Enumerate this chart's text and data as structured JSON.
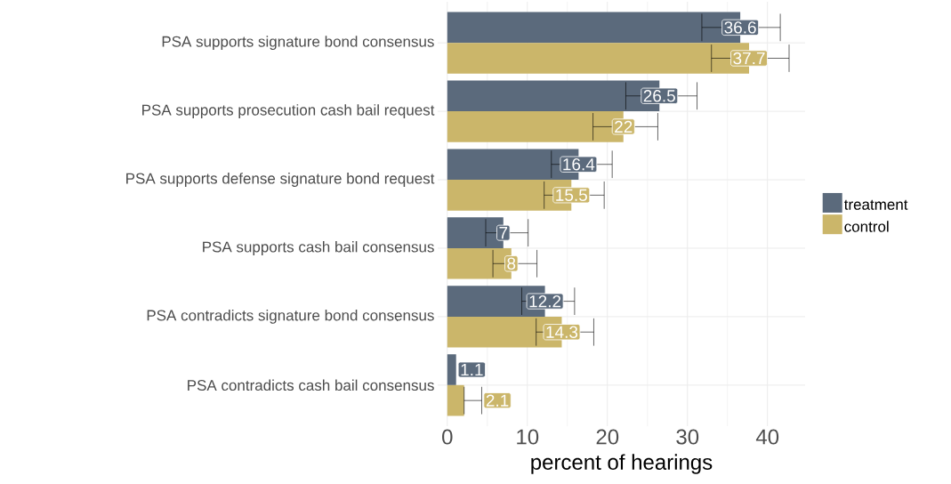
{
  "chart_data": {
    "type": "bar",
    "orientation": "horizontal",
    "xlabel": "percent of hearings",
    "categories": [
      "PSA supports signature bond consensus",
      "PSA supports prosecution cash bail request",
      "PSA supports defense signature bond request",
      "PSA supports cash bail consensus",
      "PSA contradicts signature bond consensus",
      "PSA contradicts cash bail consensus"
    ],
    "series": [
      {
        "name": "treatment",
        "color": "#5b6a7c",
        "values": [
          36.6,
          26.5,
          16.4,
          7,
          12.2,
          1.1
        ],
        "errors": [
          [
            31.8,
            41.6
          ],
          [
            22.3,
            31.2
          ],
          [
            13.0,
            20.6
          ],
          [
            4.8,
            10.1
          ],
          [
            9.3,
            15.9
          ],
          null
        ]
      },
      {
        "name": "control",
        "color": "#cbb66a",
        "values": [
          37.7,
          22,
          15.5,
          8,
          14.3,
          2.1
        ],
        "errors": [
          [
            33.0,
            42.7
          ],
          [
            18.2,
            26.3
          ],
          [
            12.1,
            19.6
          ],
          [
            5.7,
            11.2
          ],
          [
            11.1,
            18.3
          ],
          [
            2.1,
            4.3
          ]
        ]
      }
    ],
    "xlim": [
      -1.2,
      44.7
    ],
    "xticks": [
      0,
      10,
      20,
      30,
      40
    ],
    "grid": true,
    "legend": "right",
    "data_labels": true
  }
}
